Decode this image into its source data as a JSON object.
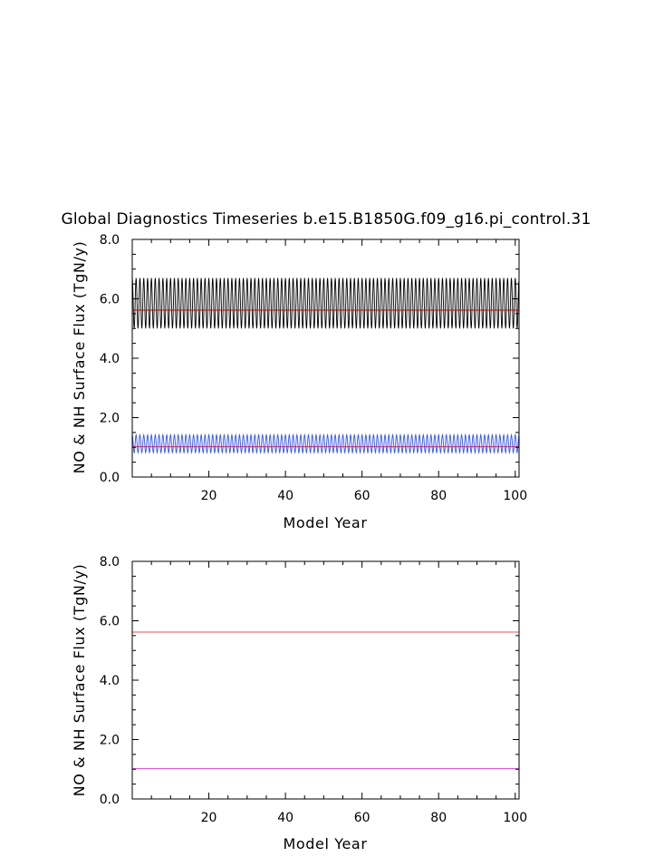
{
  "figure": {
    "title": "Global Diagnostics Timeseries b.e15.B1850G.f09_g16.pi_control.31"
  },
  "chart_data": [
    {
      "type": "line",
      "xlabel": "Model Year",
      "ylabel": "NO & NH Surface Flux (TgN/y)",
      "xlim": [
        0,
        101
      ],
      "ylim": [
        0,
        8
      ],
      "x_ticks": [
        20,
        40,
        60,
        80,
        100
      ],
      "y_ticks": [
        "0.0",
        "2.0",
        "4.0",
        "6.0",
        "8.0"
      ],
      "grid": false,
      "series": [
        {
          "kind": "seasonal-cycle",
          "color": "#000000",
          "mean": 5.85,
          "min": 5.0,
          "max": 6.7,
          "cycles_per_year": 1
        },
        {
          "kind": "annual-mean",
          "color": "#cc0000",
          "value": 5.62
        },
        {
          "kind": "seasonal-cycle",
          "color": "#3355ff",
          "mean": 1.1,
          "min": 0.82,
          "max": 1.42,
          "cycles_per_year": 1
        },
        {
          "kind": "annual-mean",
          "color": "#cc2266",
          "value": 1.02
        }
      ]
    },
    {
      "type": "line",
      "xlabel": "Model Year",
      "ylabel": "NO & NH Surface Flux (TgN/y)",
      "xlim": [
        0,
        101
      ],
      "ylim": [
        0,
        8
      ],
      "x_ticks": [
        20,
        40,
        60,
        80,
        100
      ],
      "y_ticks": [
        "0.0",
        "2.0",
        "4.0",
        "6.0",
        "8.0"
      ],
      "grid": false,
      "series": [
        {
          "kind": "annual-mean",
          "color": "#e05050",
          "value": 5.62
        },
        {
          "kind": "annual-mean",
          "color": "#cc44cc",
          "value": 1.02
        }
      ]
    }
  ]
}
